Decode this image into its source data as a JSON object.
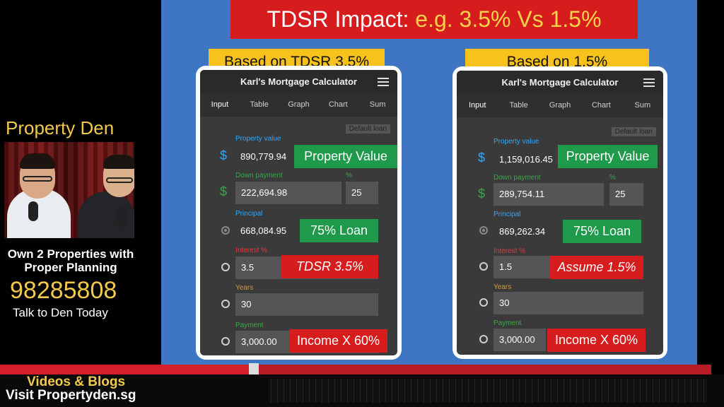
{
  "sidebar": {
    "brand": "Property Den",
    "tagline_line1": "Own 2 Properties with",
    "tagline_line2": "Proper Planning",
    "phone": "98285808",
    "cta": "Talk to Den Today"
  },
  "slide": {
    "title_prefix": "TDSR Impact: ",
    "title_emphasis": "e.g. 3.5% Vs 1.5%",
    "left": {
      "tag": "Based on TDSR 3.5%",
      "app_title": "Karl's Mortgage Calculator",
      "tabs": [
        "Input",
        "Table",
        "Graph",
        "Chart",
        "Sum"
      ],
      "default_loan": "Default loan",
      "property_value_label": "Property value",
      "property_value": "890,779.94",
      "down_payment_label": "Down payment",
      "down_payment": "222,694.98",
      "percent_label": "%",
      "percent": "25",
      "principal_label": "Principal",
      "principal": "668,084.95",
      "interest_label": "Interest %",
      "interest": "3.5",
      "years_label": "Years",
      "years": "30",
      "payment_label": "Payment",
      "payment": "3,000.00",
      "hl_property": "Property Value",
      "hl_loan": "75% Loan",
      "hl_interest": "TDSR 3.5%",
      "hl_income": "Income X 60%"
    },
    "right": {
      "tag": "Based on 1.5%",
      "app_title": "Karl's Mortgage Calculator",
      "tabs": [
        "Input",
        "Table",
        "Graph",
        "Chart",
        "Sum"
      ],
      "default_loan": "Default loan",
      "property_value_label": "Property value",
      "property_value": "1,159,016.45",
      "down_payment_label": "Down payment",
      "down_payment": "289,754.11",
      "percent_label": "%",
      "percent": "25",
      "principal_label": "Principal",
      "principal": "869,262.34",
      "interest_label": "Interest %",
      "interest": "1.5",
      "years_label": "Years",
      "years": "30",
      "payment_label": "Payment",
      "payment": "3,000.00",
      "hl_property": "Property Value",
      "hl_loan": "75% Loan",
      "hl_interest": "Assume 1.5%",
      "hl_income": "Income X 60%"
    }
  },
  "footer": {
    "videos": "Videos & Blogs",
    "visit": "Visit Propertyden.sg"
  },
  "colors": {
    "slide_bg": "#3f76c4",
    "title_red": "#d61c1c",
    "tag_yellow": "#f8c21c",
    "highlight_green": "#1e9a4a",
    "brand_gold": "#f2c94c"
  }
}
